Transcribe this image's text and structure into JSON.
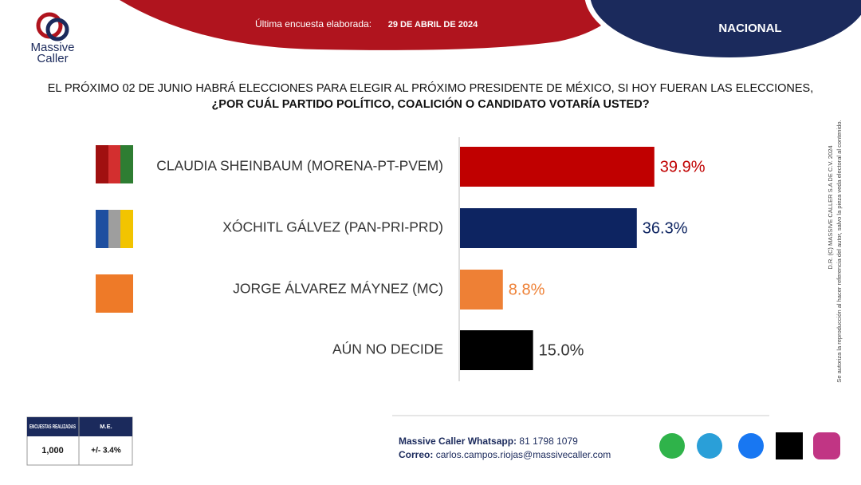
{
  "header": {
    "label": "Última encuesta elaborada:",
    "date": "29 DE ABRIL DE 2024",
    "scope": "NACIONAL",
    "brand": [
      "Massive",
      "Caller"
    ]
  },
  "chart_data": {
    "type": "bar",
    "orientation": "horizontal",
    "title": "EL PRÓXIMO 02 DE JUNIO HABRÁ ELECCIONES PARA ELEGIR AL PRÓXIMO PRESIDENTE DE MÉXICO, SI HOY FUERAN LAS ELECCIONES,",
    "subtitle": "¿POR CUÁL PARTIDO POLÍTICO, COALICIÓN O CANDIDATO VOTARÍA USTED?",
    "categories": [
      "CLAUDIA SHEINBAUM (MORENA-PT-PVEM)",
      "XÓCHITL GÁLVEZ (PAN-PRI-PRD)",
      "JORGE ÁLVAREZ MÁYNEZ (MC)",
      "AÚN NO DECIDE"
    ],
    "values": [
      39.9,
      36.3,
      8.8,
      15.0
    ],
    "value_labels": [
      "39.9%",
      "36.3%",
      "8.8%",
      "15.0%"
    ],
    "colors": [
      "#c00000",
      "#0d2461",
      "#ee8035",
      "#000000"
    ]
  },
  "methodology": {
    "headers": [
      "ENCUESTAS REALIZADAS",
      "M.E."
    ],
    "values": [
      "1,000",
      "+/- 3.4%"
    ]
  },
  "contact": {
    "whatsapp_label": "Massive Caller Whatsapp:",
    "whatsapp": "81 1798 1079",
    "email_label": "Correo:",
    "email": "carlos.campos.riojas@massivecaller.com"
  },
  "legal": [
    "D.R. (C) MASSIVE CALLER S.A DE C.V. 2024",
    "Se autoriza la reproducción al hacer referencia del autor, salvo la pieza veda electoral al contenido."
  ]
}
